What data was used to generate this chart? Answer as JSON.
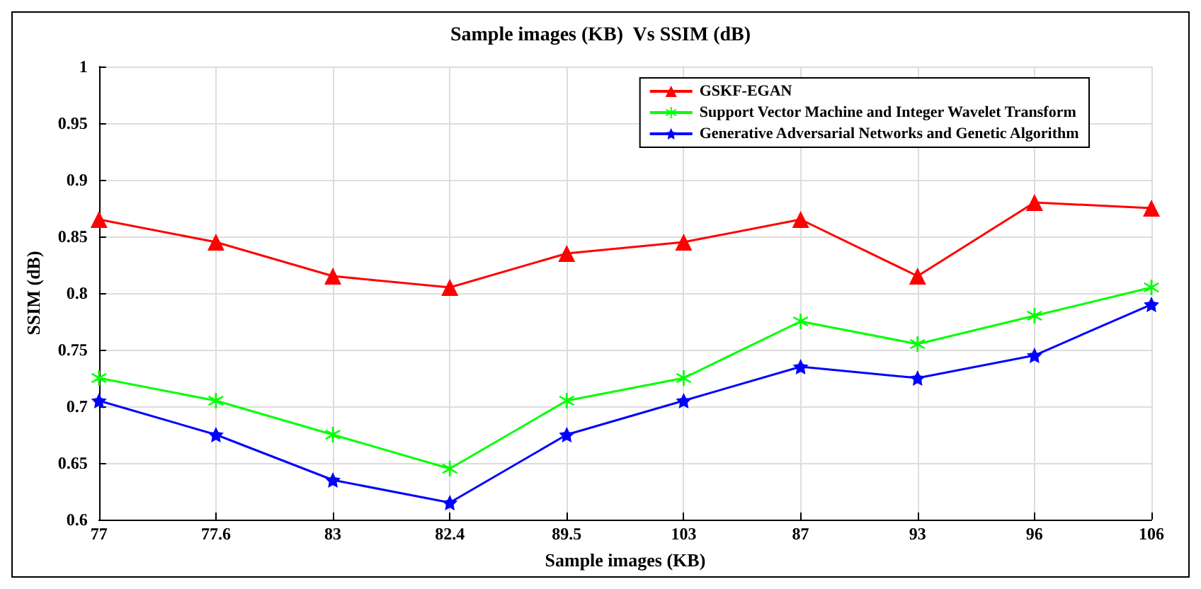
{
  "chart_data": {
    "type": "line",
    "title": "Sample images (KB)  Vs SSIM (dB)",
    "xlabel": "Sample images (KB)",
    "ylabel": "SSIM (dB)",
    "categories": [
      "77",
      "77.6",
      "83",
      "82.4",
      "89.5",
      "103",
      "87",
      "93",
      "96",
      "106"
    ],
    "series": [
      {
        "name": "GSKF-EGAN",
        "color": "#ff0000",
        "marker": "triangle",
        "values": [
          0.865,
          0.845,
          0.815,
          0.805,
          0.835,
          0.845,
          0.865,
          0.815,
          0.88,
          0.875
        ]
      },
      {
        "name": "Support Vector Machine and Integer Wavelet Transform",
        "color": "#00ff00",
        "marker": "cross",
        "values": [
          0.725,
          0.705,
          0.675,
          0.645,
          0.705,
          0.725,
          0.775,
          0.755,
          0.78,
          0.805
        ]
      },
      {
        "name": "Generative Adversarial Networks and Genetic Algorithm",
        "color": "#0000ff",
        "marker": "star",
        "values": [
          0.705,
          0.675,
          0.635,
          0.615,
          0.675,
          0.705,
          0.735,
          0.725,
          0.745,
          0.79
        ]
      }
    ],
    "ylim": [
      0.6,
      1
    ],
    "yticks": [
      0.6,
      0.65,
      0.7,
      0.75,
      0.8,
      0.85,
      0.9,
      0.95,
      1
    ],
    "grid": true,
    "legend": "top right",
    "line_style": "solid"
  }
}
